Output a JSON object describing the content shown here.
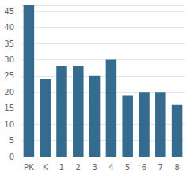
{
  "chart_data": {
    "type": "bar",
    "categories": [
      "PK",
      "K",
      "1",
      "2",
      "3",
      "4",
      "5",
      "6",
      "7",
      "8"
    ],
    "values": [
      47,
      24,
      28,
      28,
      25,
      30,
      19,
      20,
      20,
      16
    ],
    "color": "#356b8e",
    "ylim": [
      0,
      47
    ],
    "yticks": [
      0,
      5,
      10,
      15,
      20,
      25,
      30,
      35,
      40,
      45
    ],
    "grid": true
  }
}
